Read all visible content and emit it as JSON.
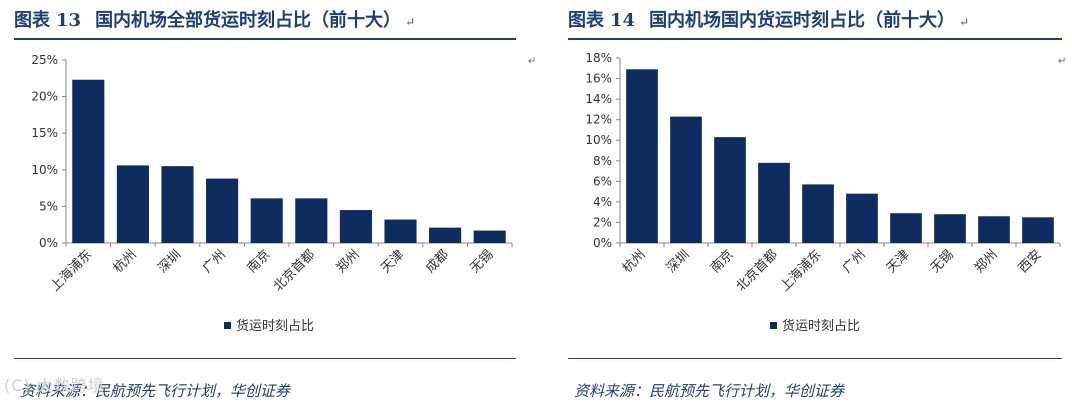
{
  "figures": [
    {
      "title_prefix": "图表",
      "title_number": "13",
      "title_text": "国内机场全部货运时刻占比（前十大）",
      "source": "资料来源：民航预先飞行计划，华创证券",
      "chart_data": {
        "type": "bar",
        "categories": [
          "上海浦东",
          "杭州",
          "深圳",
          "广州",
          "南京",
          "北京首都",
          "郑州",
          "天津",
          "成都",
          "无锡"
        ],
        "series": [
          {
            "name": "货运时刻占比",
            "values": [
              22.3,
              10.6,
              10.5,
              8.8,
              6.1,
              6.1,
              4.5,
              3.2,
              2.1,
              1.7
            ]
          }
        ],
        "yticks": [
          "0%",
          "5%",
          "10%",
          "15%",
          "20%",
          "25%"
        ],
        "ylim": [
          0,
          25
        ],
        "legend_position": "bottom",
        "bar_color": "#0e2d5e"
      }
    },
    {
      "title_prefix": "图表",
      "title_number": "14",
      "title_text": "国内机场国内货运时刻占比（前十大）",
      "source": "资料来源：民航预先飞行计划，华创证券",
      "chart_data": {
        "type": "bar",
        "categories": [
          "杭州",
          "深圳",
          "南京",
          "北京首都",
          "上海浦东",
          "广州",
          "天津",
          "无锡",
          "郑州",
          "西安"
        ],
        "series": [
          {
            "name": "货运时刻占比",
            "values": [
              16.9,
              12.3,
              10.3,
              7.8,
              5.7,
              4.8,
              2.9,
              2.8,
              2.6,
              2.5
            ]
          }
        ],
        "yticks": [
          "0%",
          "2%",
          "4%",
          "6%",
          "8%",
          "10%",
          "12%",
          "14%",
          "16%",
          "18%"
        ],
        "ylim": [
          0,
          18
        ],
        "legend_position": "bottom",
        "bar_color": "#0e2d5e"
      }
    }
  ],
  "marks": {
    "paragraph": "↵",
    "corner": "↵"
  },
  "watermark": "(C) 大数跨境"
}
